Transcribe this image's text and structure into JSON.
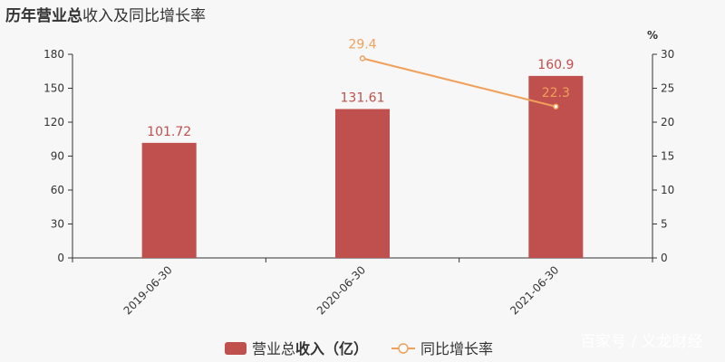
{
  "title": {
    "prefix": "历年",
    "bold": "营业总",
    "rest": "收入及同比增长率"
  },
  "colors": {
    "bar": "#c0504d",
    "bar_label": "#c0504d",
    "line": "#f0a05a",
    "axis": "#333333",
    "background": "#f7f7f7"
  },
  "legend": {
    "bar_label_plain": "营业总",
    "bar_label_bold": "收入（亿）",
    "line_label": "同比增长率",
    "placement": "bottom"
  },
  "watermark": "百家号 / 义龙财经",
  "chart_data": {
    "type": "bar",
    "categories": [
      "2019-06-30",
      "2020-06-30",
      "2021-06-30"
    ],
    "series": [
      {
        "name": "营业总收入（亿）",
        "type": "bar",
        "axis": "left",
        "values": [
          101.72,
          131.61,
          160.9
        ],
        "labels": [
          "101.72",
          "131.61",
          "160.9"
        ]
      },
      {
        "name": "同比增长率",
        "type": "line",
        "axis": "right",
        "values": [
          null,
          29.4,
          22.3
        ],
        "labels": [
          "",
          "29.4",
          "22.3"
        ]
      }
    ],
    "y_left": {
      "min": 0,
      "max": 180,
      "ticks": [
        0,
        30,
        60,
        90,
        120,
        150,
        180
      ]
    },
    "y_right": {
      "min": 0,
      "max": 30,
      "unit": "%",
      "ticks": [
        0,
        5,
        10,
        15,
        20,
        25,
        30
      ]
    },
    "grid": false
  }
}
